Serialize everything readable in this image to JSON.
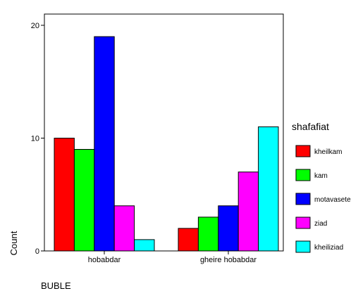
{
  "chart_data": {
    "type": "bar",
    "categories": [
      "hobabdar",
      "gheire hobabdar"
    ],
    "series": [
      {
        "name": "kheilkam",
        "values": [
          10,
          2
        ],
        "color": "#ff0000"
      },
      {
        "name": "kam",
        "values": [
          9,
          3
        ],
        "color": "#00ff00"
      },
      {
        "name": "motavasete",
        "values": [
          19,
          4
        ],
        "color": "#0000ff"
      },
      {
        "name": "ziad",
        "values": [
          4,
          7
        ],
        "color": "#ff00ff"
      },
      {
        "name": "kheiliziad",
        "values": [
          1,
          11
        ],
        "color": "#00ffff"
      }
    ],
    "xlabel": "BUBLE",
    "ylabel": "Count",
    "ylim": [
      0,
      20
    ],
    "yticks": [
      0,
      10,
      20
    ],
    "legend_title": "shafafiat",
    "legend_position": "right",
    "grid": false
  }
}
